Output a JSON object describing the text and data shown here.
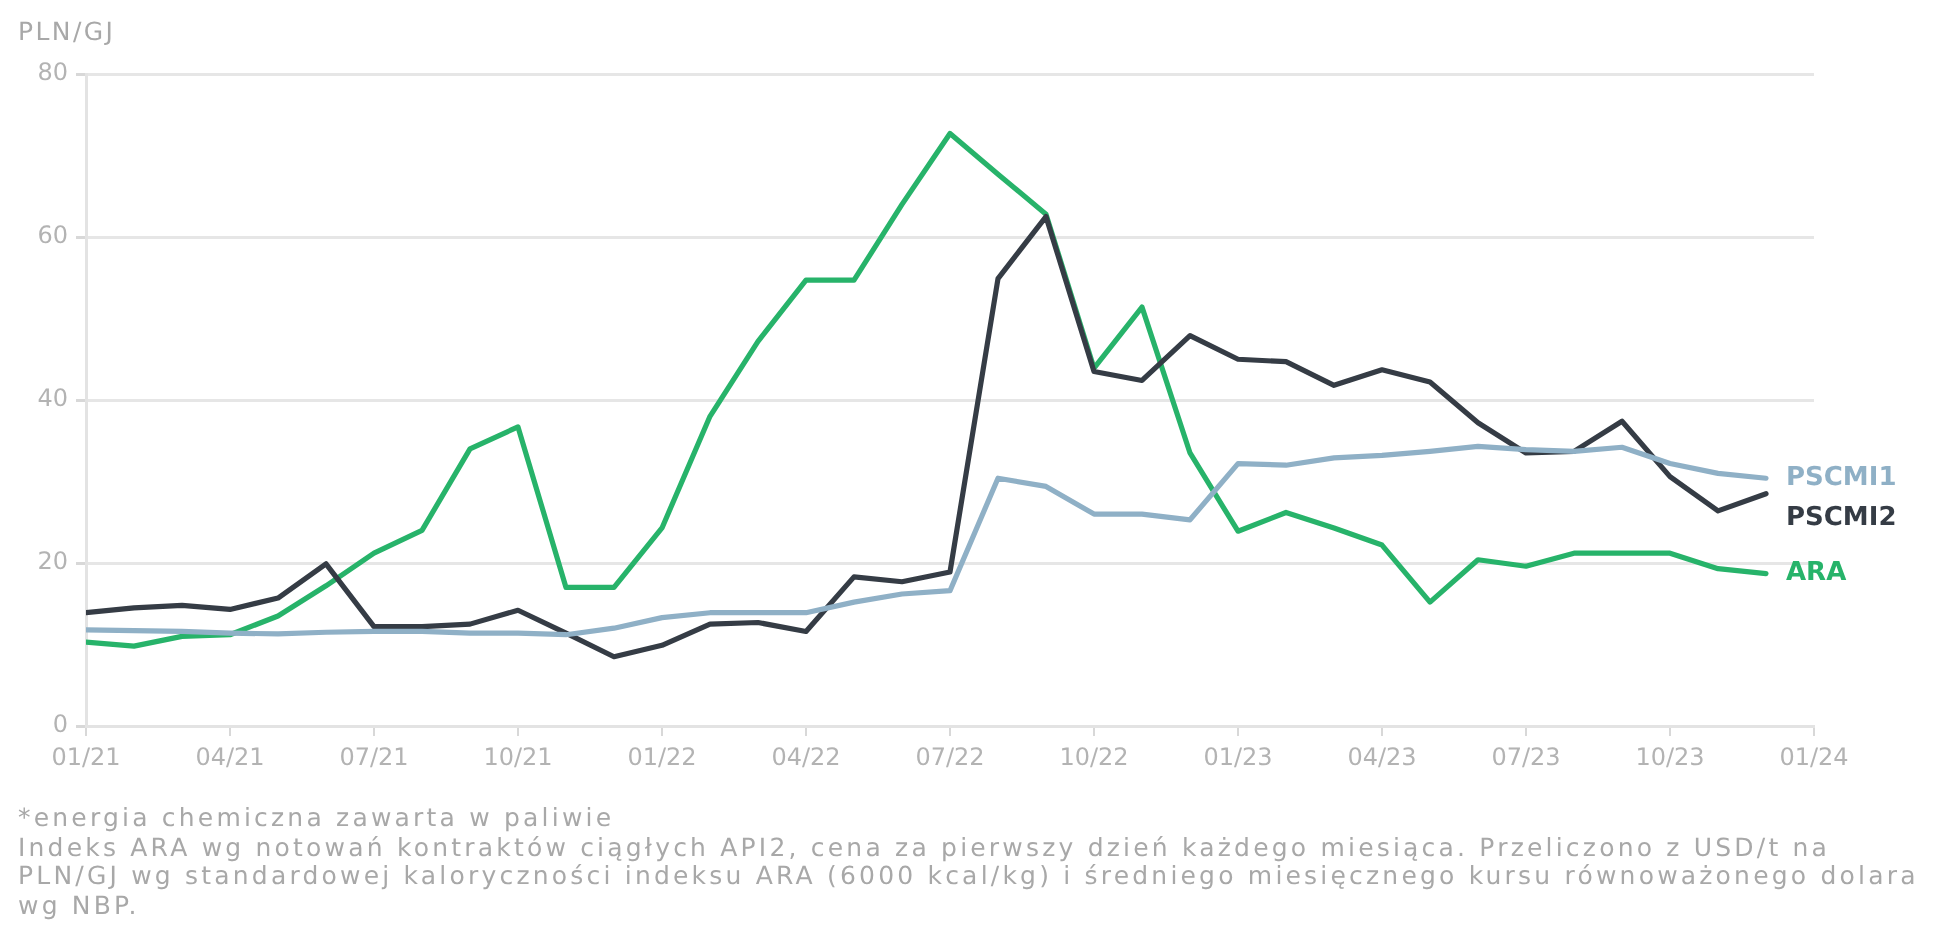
{
  "chart_data": {
    "type": "line",
    "ylabel": "PLN/GJ",
    "x": [
      "2021-01",
      "2021-02",
      "2021-03",
      "2021-04",
      "2021-05",
      "2021-06",
      "2021-07",
      "2021-08",
      "2021-09",
      "2021-10",
      "2021-11",
      "2021-12",
      "2022-01",
      "2022-02",
      "2022-03",
      "2022-04",
      "2022-05",
      "2022-06",
      "2022-07",
      "2022-08",
      "2022-09",
      "2022-10",
      "2022-11",
      "2022-12",
      "2023-01",
      "2023-02",
      "2023-03",
      "2023-04",
      "2023-05",
      "2023-06",
      "2023-07",
      "2023-08",
      "2023-09",
      "2023-10",
      "2023-11",
      "2023-12"
    ],
    "series": [
      {
        "name": "PSCMI1",
        "color": "#8fb0c6",
        "values": [
          11.8,
          11.7,
          11.6,
          11.4,
          11.3,
          11.5,
          11.6,
          11.6,
          11.4,
          11.4,
          11.2,
          12.0,
          13.3,
          13.9,
          13.9,
          13.9,
          15.2,
          16.2,
          16.6,
          30.4,
          29.4,
          26.0,
          26.0,
          25.3,
          32.2,
          32.0,
          32.9,
          33.2,
          33.7,
          34.3,
          33.9,
          33.7,
          34.2,
          32.2,
          31.0,
          30.4
        ]
      },
      {
        "name": "PSCMI2",
        "color": "#353c45",
        "values": [
          13.9,
          14.5,
          14.8,
          14.3,
          15.7,
          19.9,
          12.2,
          12.2,
          12.5,
          14.2,
          11.4,
          8.5,
          9.9,
          12.5,
          12.7,
          11.6,
          18.3,
          17.7,
          18.9,
          54.9,
          62.5,
          43.5,
          42.4,
          47.9,
          45.0,
          44.7,
          41.8,
          43.7,
          42.2,
          37.2,
          33.5,
          33.7,
          37.4,
          30.6,
          26.4,
          28.5
        ]
      },
      {
        "name": "ARA",
        "color": "#27b36a",
        "values": [
          10.3,
          9.8,
          11.0,
          11.2,
          13.5,
          17.2,
          21.2,
          24.0,
          34.0,
          36.7,
          17.0,
          17.0,
          24.3,
          38.0,
          47.2,
          54.7,
          54.7,
          64.0,
          72.7,
          67.7,
          62.8,
          43.9,
          51.4,
          33.5,
          23.9,
          26.2,
          24.3,
          22.2,
          15.2,
          20.4,
          19.6,
          21.2,
          21.2,
          21.2,
          19.3,
          18.7
        ]
      }
    ],
    "xlim": [
      "2021-01",
      "2024-01"
    ],
    "xticks": [
      {
        "value": "2021-01",
        "label": "01/21"
      },
      {
        "value": "2021-04",
        "label": "04/21"
      },
      {
        "value": "2021-07",
        "label": "07/21"
      },
      {
        "value": "2021-10",
        "label": "10/21"
      },
      {
        "value": "2022-01",
        "label": "01/22"
      },
      {
        "value": "2022-04",
        "label": "04/22"
      },
      {
        "value": "2022-07",
        "label": "07/22"
      },
      {
        "value": "2022-10",
        "label": "10/22"
      },
      {
        "value": "2023-01",
        "label": "01/23"
      },
      {
        "value": "2023-04",
        "label": "04/23"
      },
      {
        "value": "2023-07",
        "label": "07/23"
      },
      {
        "value": "2023-10",
        "label": "10/23"
      },
      {
        "value": "2024-01",
        "label": "01/24"
      }
    ],
    "ylim": [
      0,
      80
    ],
    "yticks": [
      0,
      20,
      40,
      60,
      80
    ],
    "grid": "y",
    "annotations": [
      "*energia chemiczna zawarta w paliwie",
      "Indeks ARA wg notowań kontraktów ciągłych API2, cena za pierwszy dzień każdego miesiąca. Przeliczono z USD/t na PLN/GJ wg standardowej kaloryczności indeksu ARA (6000 kcal/kg) i średniego miesięcznego kursu równoważonego dolara wg NBP."
    ]
  }
}
